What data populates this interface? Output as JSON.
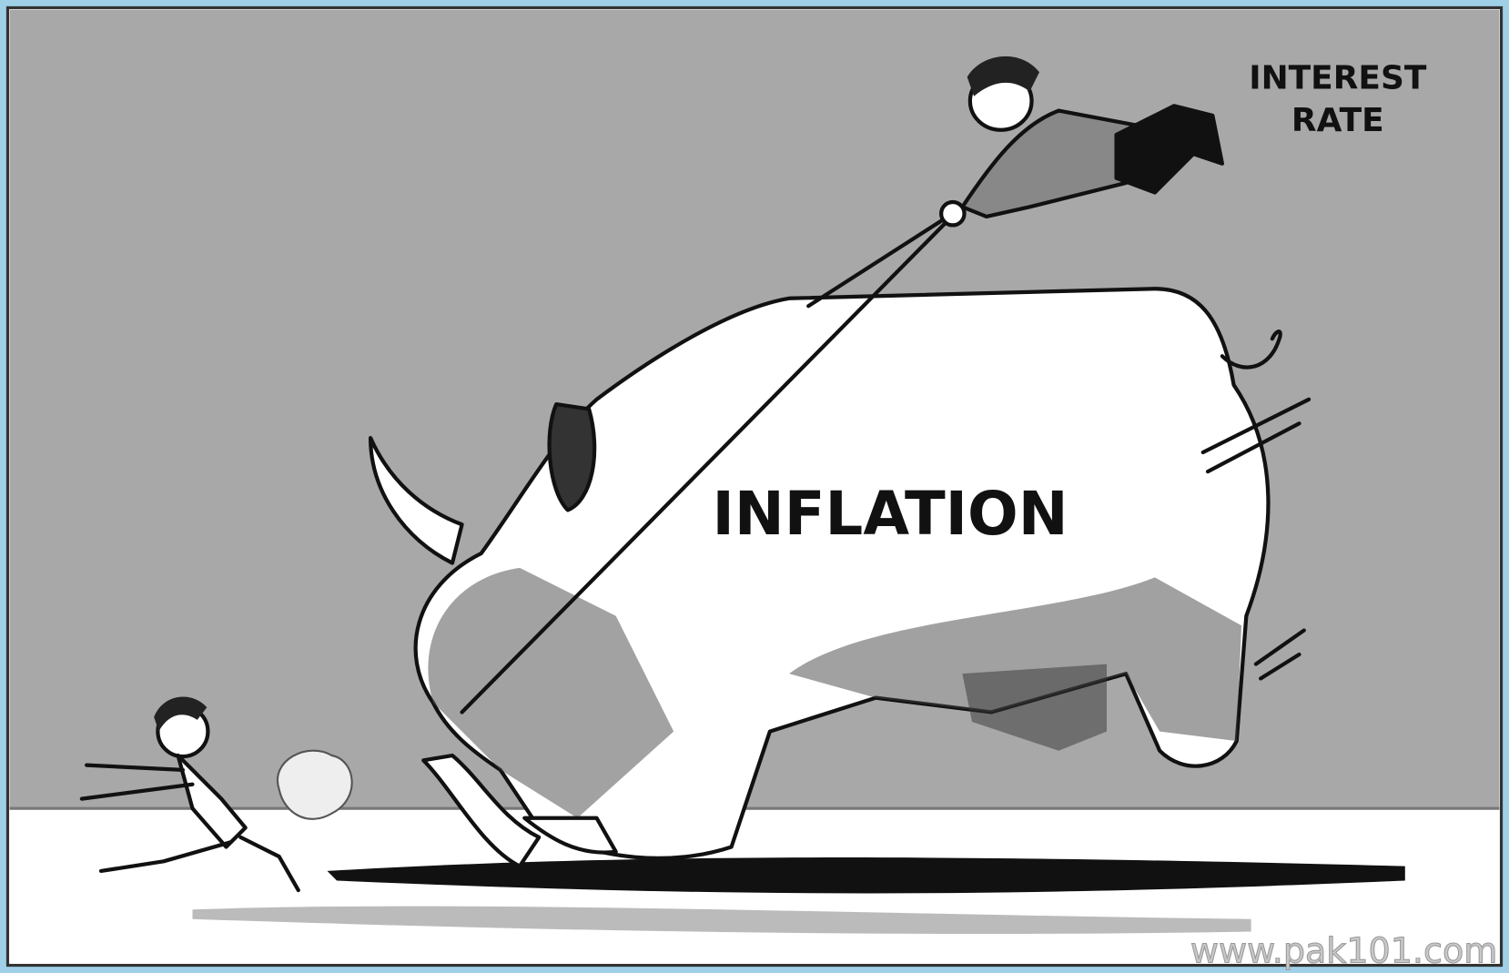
{
  "labels": {
    "interest_rate": [
      "INTEREST",
      "RATE"
    ],
    "rhino": "INFLATION",
    "watermark": "www.pak101.com"
  }
}
